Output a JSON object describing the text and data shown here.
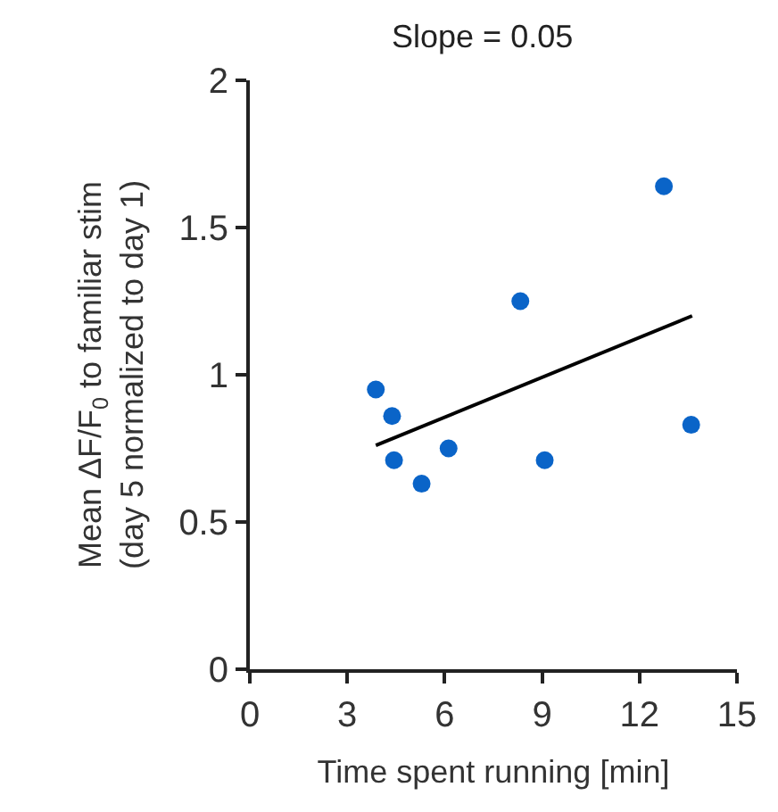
{
  "chart_data": {
    "type": "scatter",
    "title": "Slope = 0.05",
    "xlabel": "Time spent running [min]",
    "ylabel": "Mean ΔF/F$_{0}$ to familiar stim\n(day 5 normalized to day 1)",
    "xlim": [
      0,
      15
    ],
    "xticks": [
      0,
      3,
      6,
      9,
      12,
      15
    ],
    "ylim": [
      0,
      2
    ],
    "yticks": [
      0,
      0.5,
      1,
      1.5,
      2
    ],
    "marker": "circle",
    "series": [
      {
        "color": "#0a64c8",
        "x": [
          3.88,
          4.38,
          4.44,
          5.29,
          6.12,
          8.33,
          9.08,
          12.75,
          13.59
        ],
        "values": [
          0.95,
          0.86,
          0.71,
          0.63,
          0.75,
          1.25,
          0.71,
          1.64,
          0.83
        ]
      },
      {
        "type": "line",
        "marker": "none",
        "color": "#000000",
        "line_style": "solid",
        "x": [
          3.88,
          13.62
        ],
        "values": [
          0.76,
          1.2
        ]
      }
    ]
  }
}
